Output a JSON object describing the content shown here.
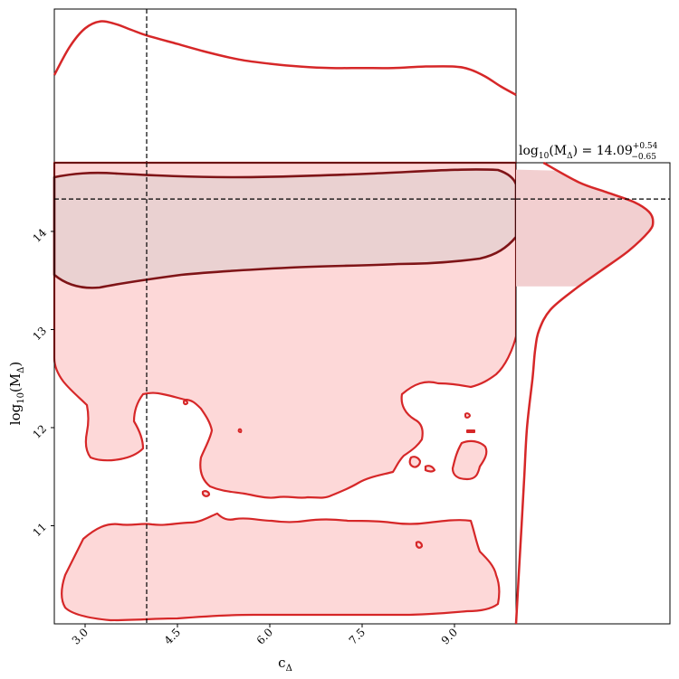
{
  "chart_data": [
    {
      "type": "line",
      "panel": "marginal-x",
      "x": [
        2.5,
        2.75,
        3.0,
        3.25,
        3.5,
        3.75,
        4.0,
        4.5,
        5.0,
        5.5,
        6.0,
        6.5,
        7.0,
        7.5,
        8.0,
        8.5,
        9.0,
        9.25,
        9.5,
        9.75,
        10.0
      ],
      "y": [
        0.62,
        0.82,
        0.95,
        1.0,
        0.98,
        0.94,
        0.9,
        0.84,
        0.78,
        0.73,
        0.7,
        0.68,
        0.67,
        0.67,
        0.67,
        0.68,
        0.68,
        0.66,
        0.61,
        0.54,
        0.48
      ],
      "xlim": [
        2.5,
        10.0
      ],
      "color": "#d62728"
    },
    {
      "type": "area",
      "panel": "joint",
      "xlabel": "c_Δ",
      "ylabel": "log10(M_Δ)",
      "xlim": [
        2.5,
        10.0
      ],
      "ylim": [
        10.0,
        14.7
      ],
      "x_ticks": [
        "3.0",
        "4.5",
        "6.0",
        "7.5",
        "9.0"
      ],
      "y_ticks": [
        "11",
        "12",
        "13",
        "14"
      ],
      "x_tick_values": [
        3.0,
        4.5,
        6.0,
        7.5,
        9.0
      ],
      "y_tick_values": [
        11,
        12,
        13,
        14
      ],
      "truth_x": 4.0,
      "truth_y": 14.33,
      "inner_contour_color": "#7f1417",
      "outer_contour_color": "#d62728",
      "fill_color": "#fdd8d8"
    },
    {
      "type": "line",
      "panel": "marginal-y",
      "title": "log10(M_Δ) = 14.09 +0.54 −0.65",
      "median": 14.09,
      "upper_err": 0.54,
      "lower_err": 0.65,
      "y": [
        10.0,
        10.5,
        11.0,
        11.5,
        12.0,
        12.5,
        12.8,
        13.0,
        13.2,
        13.4,
        13.6,
        13.8,
        14.0,
        14.1,
        14.2,
        14.3,
        14.4,
        14.5,
        14.7
      ],
      "x": [
        0.0,
        0.02,
        0.04,
        0.06,
        0.08,
        0.12,
        0.14,
        0.17,
        0.25,
        0.42,
        0.62,
        0.82,
        0.97,
        1.0,
        0.97,
        0.86,
        0.66,
        0.46,
        0.2
      ],
      "ylim": [
        10.0,
        14.7
      ],
      "shaded_range": [
        13.44,
        14.63
      ],
      "color": "#d62728"
    }
  ],
  "labels": {
    "x_axis": "c",
    "x_axis_sub": "Δ",
    "y_axis_pre": "log",
    "y_axis_sub": "10",
    "y_axis_mid": "(M",
    "y_axis_sub2": "Δ",
    "y_axis_post": ")",
    "title_pre": "log",
    "title_sub": "10",
    "title_mid": "(M",
    "title_sub2": "Δ",
    "title_post": ") = 14.09",
    "title_sup": "+0.54",
    "title_subscript": "−0.65"
  }
}
